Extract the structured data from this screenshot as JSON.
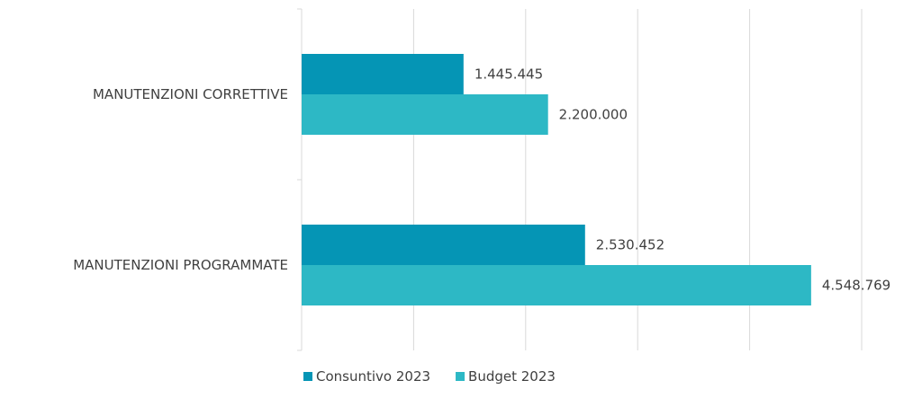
{
  "chart_data": {
    "type": "bar",
    "orientation": "horizontal",
    "categories": [
      "MANUTENZIONI CORRETTIVE",
      "MANUTENZIONI PROGRAMMATE"
    ],
    "series": [
      {
        "name": "Consuntivo 2023",
        "values": [
          1445445,
          2530452
        ],
        "labels": [
          "1.445.445",
          "2.530.452"
        ],
        "color": "#0595b5"
      },
      {
        "name": "Budget 2023",
        "values": [
          2200000,
          4548769
        ],
        "labels": [
          "2.200.000",
          "4.548.769"
        ],
        "color": "#2db8c5"
      }
    ],
    "title": "",
    "xlabel": "",
    "ylabel": "",
    "xlim": [
      0,
      5000000
    ],
    "grid": true,
    "legend": "bottom"
  }
}
